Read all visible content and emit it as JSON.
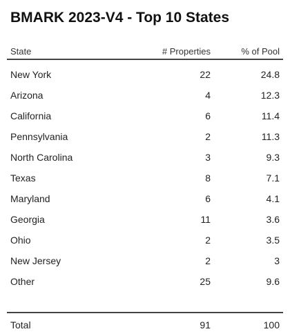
{
  "title": "BMARK 2023-V4 - Top 10 States",
  "columns": {
    "state": "State",
    "properties": "# Properties",
    "pool": "% of Pool"
  },
  "rows": [
    {
      "state": "New York",
      "properties": "22",
      "pool": "24.8"
    },
    {
      "state": "Arizona",
      "properties": "4",
      "pool": "12.3"
    },
    {
      "state": "California",
      "properties": "6",
      "pool": "11.4"
    },
    {
      "state": "Pennsylvania",
      "properties": "2",
      "pool": "11.3"
    },
    {
      "state": "North Carolina",
      "properties": "3",
      "pool": "9.3"
    },
    {
      "state": "Texas",
      "properties": "8",
      "pool": "7.1"
    },
    {
      "state": "Maryland",
      "properties": "6",
      "pool": "4.1"
    },
    {
      "state": "Georgia",
      "properties": "11",
      "pool": "3.6"
    },
    {
      "state": "Ohio",
      "properties": "2",
      "pool": "3.5"
    },
    {
      "state": "New Jersey",
      "properties": "2",
      "pool": "3"
    },
    {
      "state": "Other",
      "properties": "25",
      "pool": "9.6"
    }
  ],
  "total": {
    "state": "Total",
    "properties": "91",
    "pool": "100"
  }
}
